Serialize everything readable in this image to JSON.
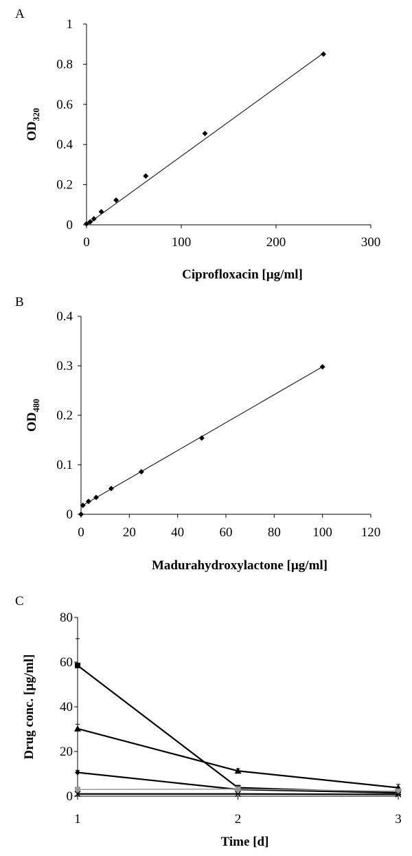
{
  "chart_data": [
    {
      "panel": "A",
      "type": "scatter",
      "xlabel": "Ciprofloxacin [µg/ml]",
      "ylabel_main": "OD",
      "ylabel_sub": "320",
      "xlim": [
        0,
        300
      ],
      "ylim": [
        0,
        1
      ],
      "xticks": [
        "0",
        "100",
        "200",
        "300"
      ],
      "yticks": [
        "0",
        "0.2",
        "0.4",
        "0.6",
        "0.8",
        "1"
      ],
      "points": [
        [
          0,
          0.005
        ],
        [
          3.9,
          0.015
        ],
        [
          7.8,
          0.03
        ],
        [
          15.6,
          0.065
        ],
        [
          31.25,
          0.123
        ],
        [
          62.5,
          0.243
        ],
        [
          125,
          0.455
        ],
        [
          250,
          0.85
        ]
      ],
      "trendline": [
        [
          0,
          0.0
        ],
        [
          250,
          0.855
        ]
      ],
      "legend": "none",
      "grid": false
    },
    {
      "panel": "B",
      "type": "scatter",
      "xlabel": "Madurahydroxylactone [µg/ml]",
      "ylabel_main": "OD",
      "ylabel_sub": "480",
      "xlim": [
        0,
        120
      ],
      "ylim": [
        0,
        0.4
      ],
      "xticks": [
        "0",
        "20",
        "40",
        "60",
        "80",
        "100",
        "120"
      ],
      "yticks": [
        "0",
        "0.1",
        "0.2",
        "0.3",
        "0.4"
      ],
      "points": [
        [
          0,
          0.0
        ],
        [
          0.78,
          0.018
        ],
        [
          3.1,
          0.026
        ],
        [
          6.25,
          0.034
        ],
        [
          12.5,
          0.052
        ],
        [
          25,
          0.086
        ],
        [
          50,
          0.154
        ],
        [
          100,
          0.298
        ]
      ],
      "trendline": [
        [
          0,
          0.016
        ],
        [
          100,
          0.298
        ]
      ],
      "legend": "none",
      "grid": false
    },
    {
      "panel": "C",
      "type": "line",
      "xlabel": "Time [d]",
      "ylabel": "Drug conc. [µg/ml]",
      "xlim": [
        1,
        3
      ],
      "ylim": [
        0,
        80
      ],
      "xticks": [
        "1",
        "2",
        "3"
      ],
      "yticks": [
        "0",
        "20",
        "40",
        "60",
        "80"
      ],
      "x": [
        1,
        2,
        3
      ],
      "series": [
        {
          "marker": "square",
          "values": [
            58.5,
            3.8,
            1.5
          ],
          "err": [
            12,
            1,
            0.5
          ],
          "color": "#000000"
        },
        {
          "marker": "triangle",
          "values": [
            30.2,
            11.3,
            3.8
          ],
          "err": [
            2,
            1,
            1.5
          ],
          "color": "#000000"
        },
        {
          "marker": "diamond",
          "values": [
            10.6,
            3.0,
            1.5
          ],
          "err": [
            1,
            0.5,
            0.5
          ],
          "color": "#000000"
        },
        {
          "marker": "square-gray",
          "values": [
            3.0,
            3.2,
            2.2
          ],
          "err": [
            0,
            0,
            0
          ],
          "color": "#999999"
        },
        {
          "marker": "x",
          "values": [
            1.0,
            1.0,
            0.8
          ],
          "err": [
            0,
            0,
            0
          ],
          "color": "#000000"
        }
      ],
      "legend": "none",
      "grid": false
    }
  ]
}
